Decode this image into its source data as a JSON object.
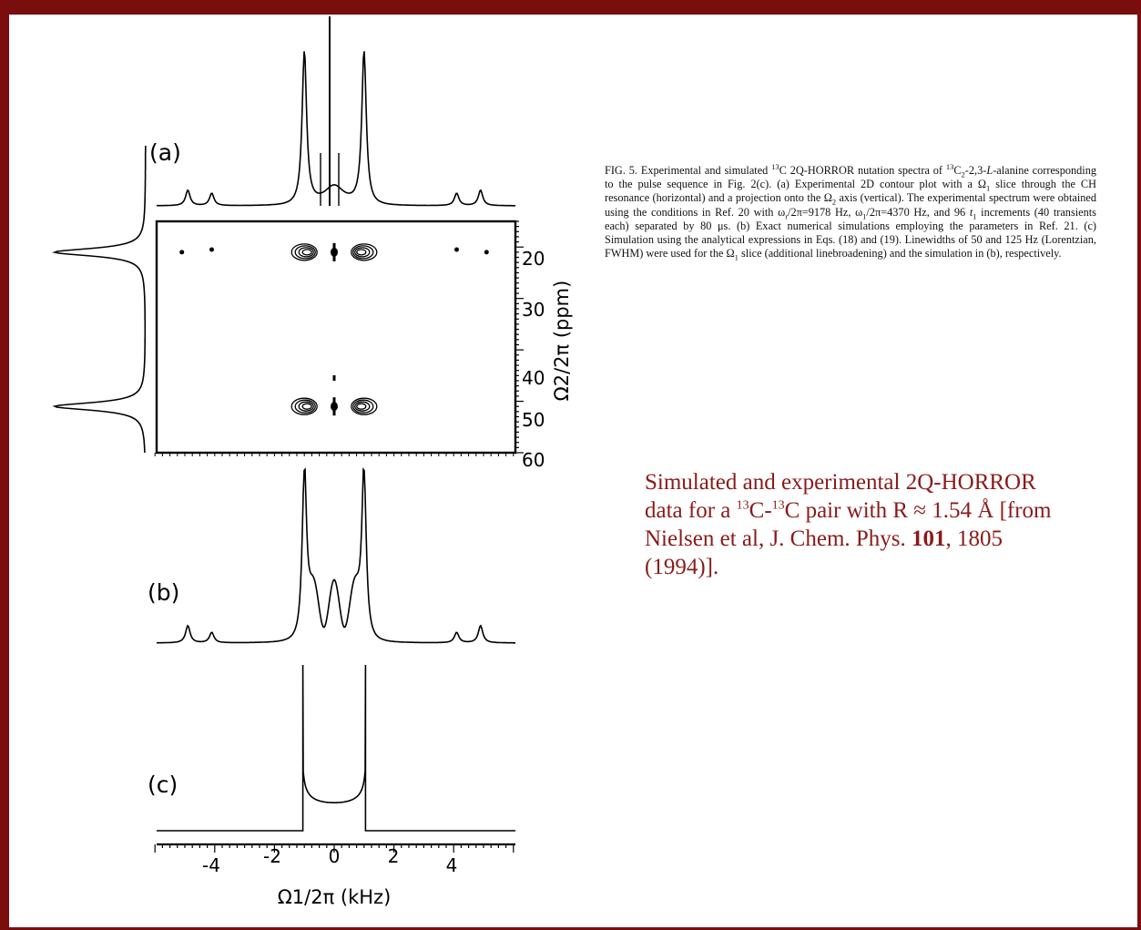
{
  "figure": {
    "panel_labels": [
      "(a)",
      "(b)",
      "(c)"
    ],
    "x_axis_label": "Ω1/2π (kHz)",
    "y_axis_label": "Ω2/2π (ppm)",
    "x_ticks": [
      "-4",
      "-2",
      "0",
      "2",
      "4"
    ],
    "y_ticks": [
      "20",
      "30",
      "40",
      "50",
      "60"
    ]
  },
  "caption": {
    "fig_label": "FIG. 5.",
    "text_1": " Experimental and simulated ",
    "text_2": "C 2Q-HORROR nutation spectra of ",
    "text_3": "C",
    "text_4": "-2,3-",
    "text_5": "L",
    "text_6": "-alanine corresponding to the pulse sequence in Fig. 2(c). (a) Experimental 2D contour plot with a Ω",
    "text_7": " slice through the CH resonance (horizontal) and a projection onto the Ω",
    "text_8": " axis (vertical). The experimental spectrum were obtained using the conditions in Ref. 20 with ω",
    "text_9": "/2π=9178 Hz, ω",
    "text_10": "/2π=4370 Hz, and 96 ",
    "text_11": "t",
    "text_12": " increments (40 transients each) separated by 80 μs. (b) Exact numerical simulations employing the parameters in Ref. 21. (c) Simulation using the analytical expressions in Eqs. (18) and (19). Linewidths of 50 and 125 Hz (Lorentzian, FWHM) were used for the Ω",
    "text_13": " slice (additional linebroadening) and the simulation in (b), respectively.",
    "sup_13": "13",
    "sub_2": "2",
    "sub_r": "r",
    "sub_1": "1"
  },
  "summary": {
    "line_a": "Simulated and experimental 2Q-HORROR data for a ",
    "sup_13": "13",
    "mid_1": "C-",
    "mid_2": "C pair with R ≈ 1.54 Å [from Nielsen et al, J. Chem. Phys. ",
    "volume": "101",
    "tail": ", 1805 (1994)]."
  },
  "chart_data": [
    {
      "type": "line",
      "panel": "(a)",
      "x_unit": "kHz",
      "x": [
        -4.9,
        -4.1,
        -1.0,
        -0.15,
        0.0,
        0.15,
        1.0,
        4.1,
        4.9
      ],
      "peaks": [
        {
          "x": -4.9,
          "rel_height": 0.1
        },
        {
          "x": -4.1,
          "rel_height": 0.08
        },
        {
          "x": -1.0,
          "rel_height": 1.0
        },
        {
          "x": 0.0,
          "rel_height": 1.3
        },
        {
          "x": 1.0,
          "rel_height": 1.0
        },
        {
          "x": 4.1,
          "rel_height": 0.08
        },
        {
          "x": 4.9,
          "rel_height": 0.1
        }
      ]
    },
    {
      "type": "scatter",
      "panel": "(a) 2D contour",
      "xlim": [
        -6,
        6
      ],
      "ylim": [
        15,
        60
      ],
      "xlabel": "Ω1/2π (kHz)",
      "ylabel": "Ω2/2π (ppm)",
      "contours": [
        {
          "x": -5.1,
          "y": 21
        },
        {
          "x": -4.1,
          "y": 20.5
        },
        {
          "x": -1.0,
          "y": 21
        },
        {
          "x": 0.0,
          "y": 21
        },
        {
          "x": 1.0,
          "y": 21
        },
        {
          "x": 4.1,
          "y": 20.5
        },
        {
          "x": 5.1,
          "y": 21
        },
        {
          "x": -1.0,
          "y": 51
        },
        {
          "x": 0.0,
          "y": 51
        },
        {
          "x": 1.0,
          "y": 51
        }
      ],
      "projection_peaks_ppm": [
        21,
        51
      ]
    },
    {
      "type": "line",
      "panel": "(b)",
      "x_unit": "kHz",
      "peaks": [
        {
          "x": -4.9,
          "rel_height": 0.1
        },
        {
          "x": -4.1,
          "rel_height": 0.06
        },
        {
          "x": -1.0,
          "rel_height": 1.0
        },
        {
          "x": 1.0,
          "rel_height": 1.0
        },
        {
          "x": 4.1,
          "rel_height": 0.06
        },
        {
          "x": 4.9,
          "rel_height": 0.1
        }
      ]
    },
    {
      "type": "line",
      "panel": "(c)",
      "x_unit": "kHz",
      "xlim": [
        -6,
        6
      ],
      "edges": [
        -1.05,
        1.05
      ],
      "xlabel": "Ω1/2π (kHz)",
      "x_ticks": [
        -4,
        -2,
        0,
        2,
        4
      ]
    }
  ]
}
